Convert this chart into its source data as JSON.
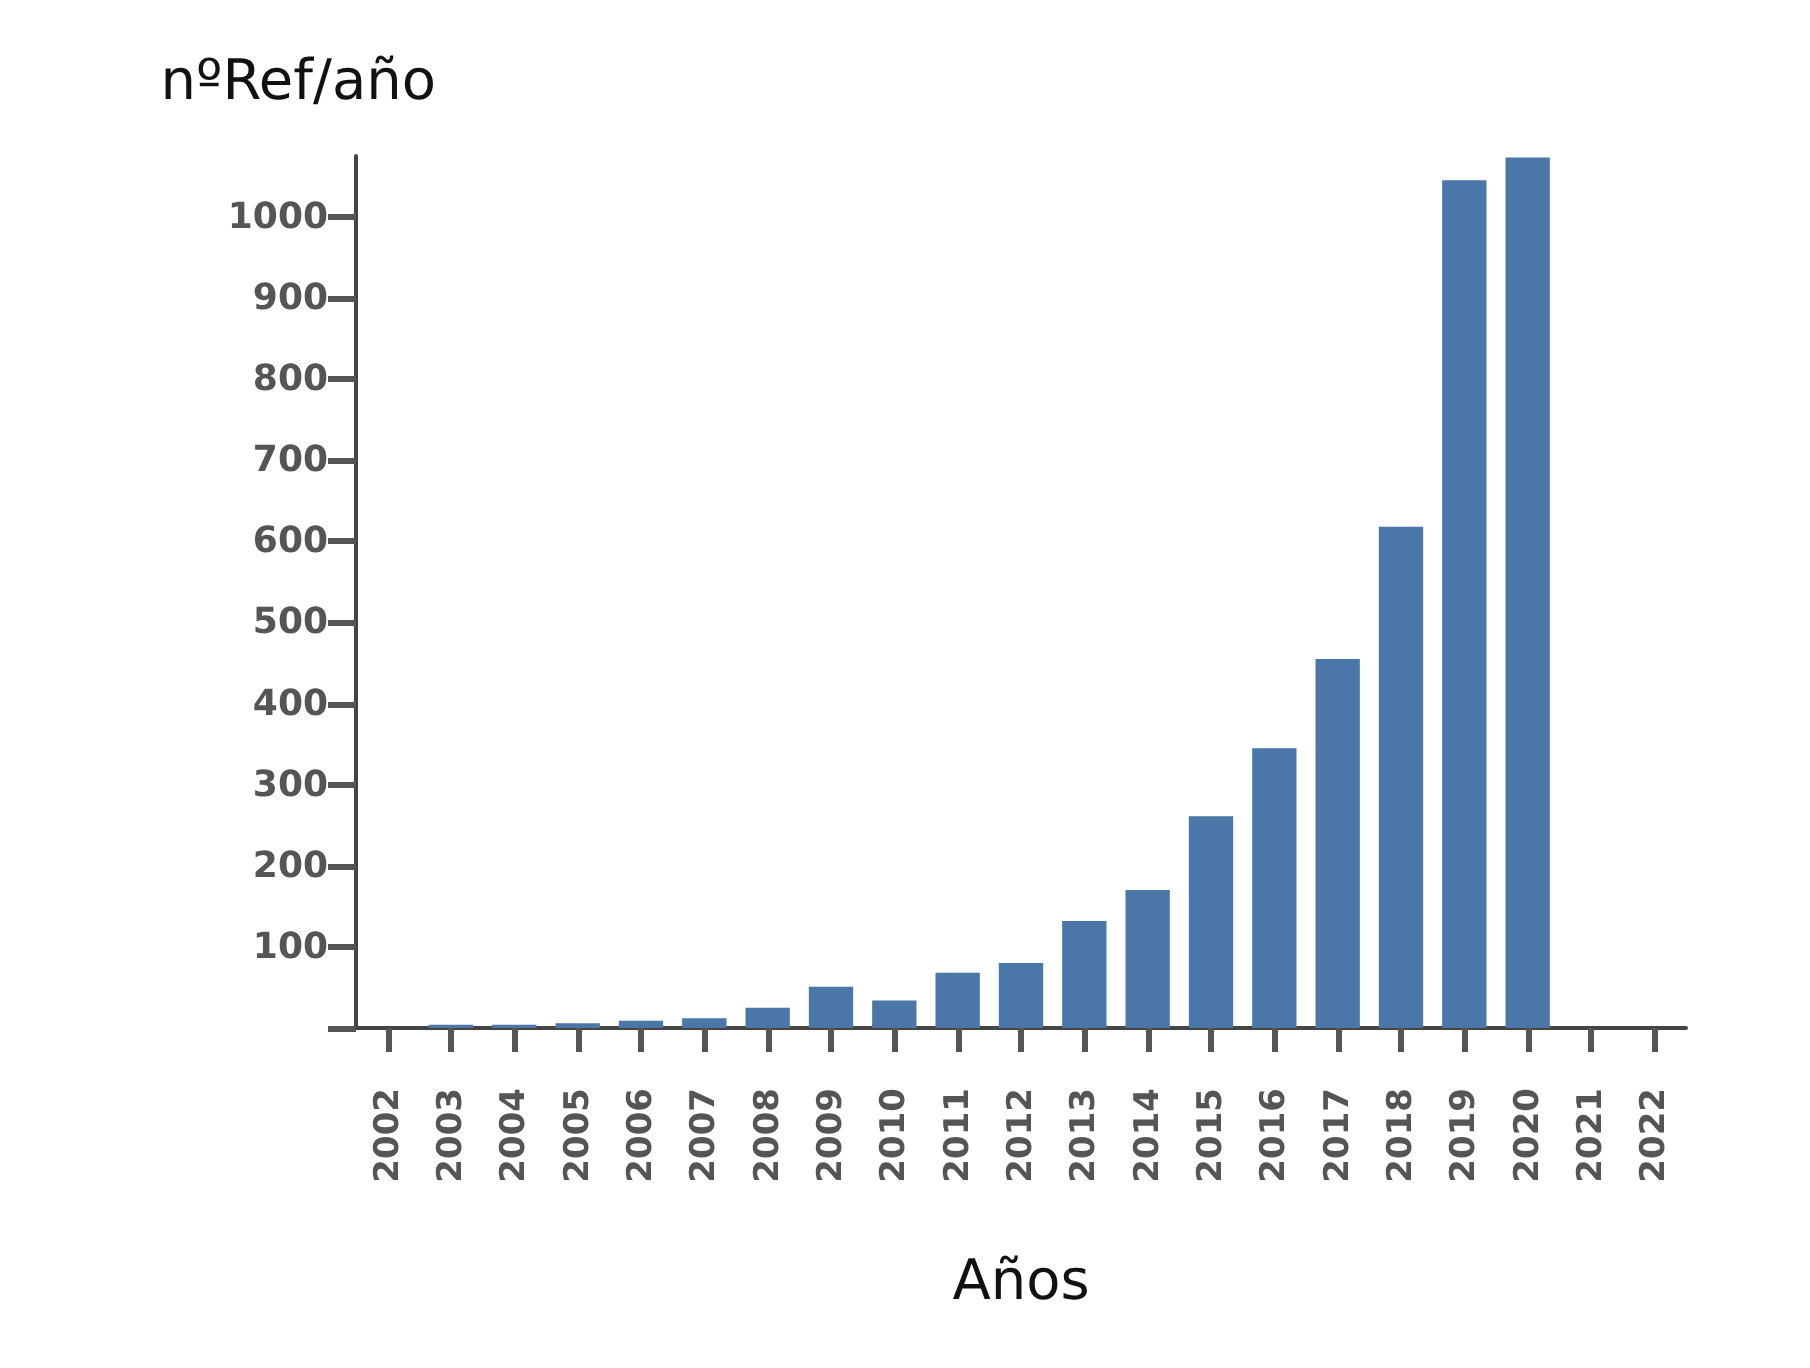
{
  "chart_data": {
    "type": "bar",
    "ylabel": "nºRef/año",
    "xlabel": "Años",
    "categories": [
      "2002",
      "2003",
      "2004",
      "2005",
      "2006",
      "2007",
      "2008",
      "2009",
      "2010",
      "2011",
      "2012",
      "2013",
      "2014",
      "2015",
      "2016",
      "2017",
      "2018",
      "2019",
      "2020",
      "2021",
      "2022"
    ],
    "values": [
      null,
      4,
      4,
      6,
      9,
      12,
      25,
      51,
      34,
      68,
      80,
      132,
      170,
      261,
      345,
      455,
      618,
      1045,
      1073,
      null,
      null
    ],
    "color": "#4a76a8",
    "ylim": [
      0,
      1075
    ],
    "yticks": [
      {
        "value": 0,
        "label": null
      },
      100,
      200,
      300,
      400,
      500,
      600,
      700,
      800,
      900,
      1000
    ],
    "grid": false
  }
}
